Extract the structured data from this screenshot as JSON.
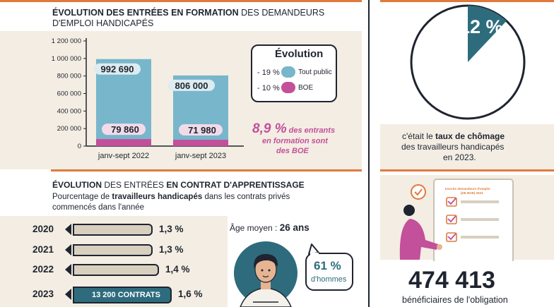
{
  "section1": {
    "title_bold": "ÉVOLUTION DES ENTRÉES EN FORMATION",
    "title_rest": " DES DEMANDEURS",
    "title_line2": "D'EMPLOI HANDICAPÉS"
  },
  "chart_data": {
    "type": "bar",
    "categories": [
      "janv-sept 2022",
      "janv-sept 2023"
    ],
    "series": [
      {
        "name": "Tout public",
        "values": [
          992690,
          806000
        ],
        "labels": [
          "992 690",
          "806 000"
        ],
        "color": "#78b6cb"
      },
      {
        "name": "BOE",
        "values": [
          79860,
          71980
        ],
        "labels": [
          "79 860",
          "71 980"
        ],
        "color": "#c2509a"
      }
    ],
    "yticks": [
      "1 200 000",
      "1 000 000",
      "800 000",
      "600 000",
      "400 000",
      "200 000",
      "0"
    ],
    "ylim": [
      0,
      1200000
    ]
  },
  "legend": {
    "title": "Évolution",
    "items": [
      {
        "pct": "- 19 %",
        "label": "Tout public",
        "color": "#78b6cb"
      },
      {
        "pct": "- 10 %",
        "label": "BOE",
        "color": "#c2509a"
      }
    ]
  },
  "highlight": {
    "big": "8,9 %",
    "small1": " des entrants",
    "line2": "en formation sont",
    "line3": "des BOE"
  },
  "section2": {
    "title_a": "ÉVOLUTION",
    "title_b": " DES ENTRÉES ",
    "title_c": "EN CONTRAT D'APPRENTISSAGE",
    "sub_a": "Pourcentage de ",
    "sub_b": "travailleurs handicapés",
    "sub_c": " dans les contrats privés",
    "sub_line2": "commencés dans l'année"
  },
  "rows": [
    {
      "year": "2020",
      "pct": "1,3 %",
      "fraction": 0.81,
      "label": ""
    },
    {
      "year": "2021",
      "pct": "1,3 %",
      "fraction": 0.81,
      "label": ""
    },
    {
      "year": "2022",
      "pct": "1,4 %",
      "fraction": 0.87,
      "label": ""
    },
    {
      "year": "2023",
      "pct": "1,6 %",
      "fraction": 1.0,
      "label": "13 200 CONTRATS"
    }
  ],
  "age": {
    "label": "Âge moyen : ",
    "value": "26 ans"
  },
  "men": {
    "pct": "61 %",
    "label": "d'hommes"
  },
  "unemployment": {
    "value": "12 %",
    "fraction": 0.12,
    "line1_a": "c'était le ",
    "line1_b": "taux de chômage",
    "line2": "des travailleurs handicapés",
    "line3": "en 2023."
  },
  "clipboard": {
    "title": "Inscrits demandeurs d'emploi",
    "subtitle": "(DE BOE) 2023"
  },
  "beneficiaries": {
    "value": "474 413",
    "label": "bénéficiaires de l'obligation"
  },
  "colors": {
    "accent": "#e07a3c",
    "teal": "#2e6c7d",
    "blue": "#78b6cb",
    "pink": "#c2509a"
  }
}
